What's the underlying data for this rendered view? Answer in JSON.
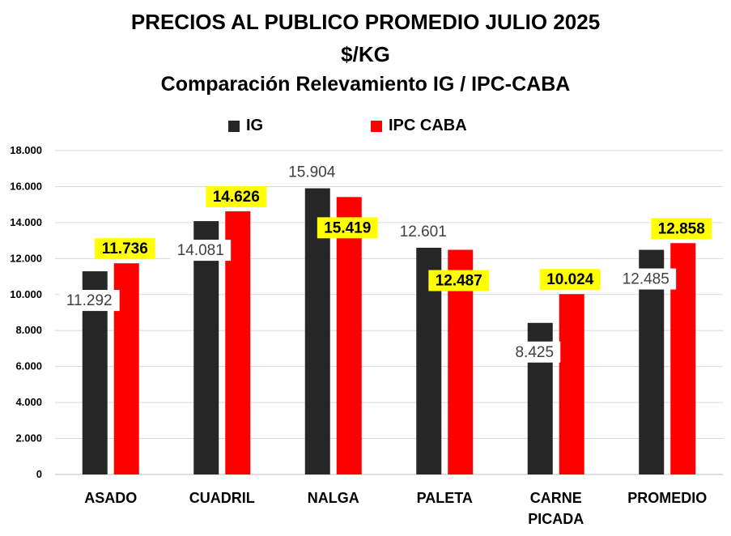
{
  "chart_data": {
    "type": "bar",
    "title": "PRECIOS AL PUBLICO PROMEDIO JULIO 2025",
    "subtitle": "$/KG",
    "subtitle2": "Comparación Relevamiento IG / IPC-CABA",
    "categories": [
      "ASADO",
      "CUADRIL",
      "NALGA",
      "PALETA",
      "CARNE PICADA",
      "PROMEDIO"
    ],
    "series": [
      {
        "name": "IG",
        "color": "#262626",
        "values": [
          11292,
          14081,
          15904,
          12601,
          8425,
          12485
        ],
        "labels": [
          "11.292",
          "14.081",
          "15.904",
          "12.601",
          "8.425",
          "12.485"
        ]
      },
      {
        "name": "IPC CABA",
        "color": "#ff0000",
        "values": [
          11736,
          14626,
          15419,
          12487,
          10024,
          12858
        ],
        "labels": [
          "11.736",
          "14.626",
          "15.419",
          "12.487",
          "10.024",
          "12.858"
        ]
      }
    ],
    "yticks": [
      "0",
      "2.000",
      "4.000",
      "6.000",
      "8.000",
      "10.000",
      "12.000",
      "14.000",
      "16.000",
      "18.000"
    ],
    "ylim": [
      0,
      18000
    ],
    "xlabel": "",
    "ylabel": "",
    "grid": true,
    "legend_position": "top",
    "highlight_color": "#ffff00"
  }
}
